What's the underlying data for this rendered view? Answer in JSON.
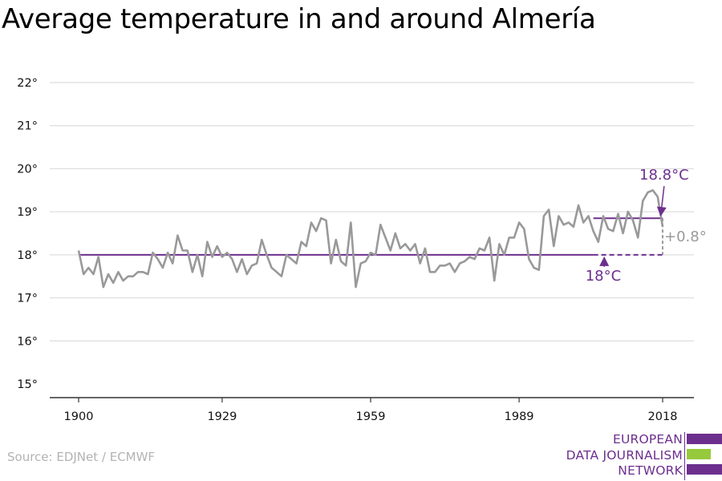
{
  "title": "Average temperature in and around Almería",
  "source": "Source: EDJNet / ECMWF",
  "logo": {
    "lines": [
      "EUROPEAN",
      "DATA JOURNALISM",
      "NETWORK"
    ],
    "colors": [
      "#6d2f8e",
      "#97c93d",
      "#6d2f8e"
    ]
  },
  "chart_data": {
    "type": "line",
    "title": "Average temperature in and around Almería",
    "xlabel": "",
    "ylabel": "",
    "xlim": [
      1900,
      2018
    ],
    "ylim": [
      15,
      22
    ],
    "x_ticks": [
      1900,
      1929,
      1959,
      1989,
      2018
    ],
    "y_ticks": [
      15,
      16,
      17,
      18,
      19,
      20,
      21,
      22
    ],
    "y_tick_suffix": "°",
    "grid": "horizontal",
    "series": [
      {
        "color": "#999999",
        "x_start": 1900,
        "x_end": 2018,
        "values": [
          18.1,
          17.55,
          17.7,
          17.55,
          17.95,
          17.25,
          17.55,
          17.35,
          17.6,
          17.4,
          17.5,
          17.5,
          17.6,
          17.6,
          17.55,
          18.05,
          17.9,
          17.7,
          18.05,
          17.8,
          18.45,
          18.1,
          18.1,
          17.6,
          18.0,
          17.5,
          18.3,
          17.95,
          18.2,
          17.95,
          18.05,
          17.9,
          17.6,
          17.9,
          17.55,
          17.75,
          17.8,
          18.35,
          18.0,
          17.7,
          17.6,
          17.5,
          18.0,
          17.9,
          17.8,
          18.3,
          18.2,
          18.75,
          18.55,
          18.85,
          18.8,
          17.8,
          18.35,
          17.85,
          17.75,
          18.75,
          17.25,
          17.8,
          17.85,
          18.05,
          18.0,
          18.7,
          18.4,
          18.1,
          18.5,
          18.15,
          18.25,
          18.1,
          18.25,
          17.8,
          18.15,
          17.6,
          17.6,
          17.75,
          17.75,
          17.8,
          17.6,
          17.8,
          17.85,
          17.95,
          17.9,
          18.15,
          18.1,
          18.4,
          17.4,
          18.25,
          18.0,
          18.4,
          18.4,
          18.75,
          18.6,
          17.9,
          17.7,
          17.65,
          18.9,
          19.05,
          18.2,
          18.9,
          18.7,
          18.75,
          18.65,
          19.15,
          18.75,
          18.9,
          18.55,
          18.3,
          18.9,
          18.6,
          18.55,
          18.95,
          18.5,
          19.0,
          18.8,
          18.4,
          19.25,
          19.45,
          19.5,
          19.35,
          18.65
        ]
      }
    ],
    "reference_lines": [
      {
        "value": 18.0,
        "from": 1900,
        "to": 2004,
        "dashed_to": 2018,
        "color": "#6d2f8e"
      },
      {
        "value": 18.85,
        "from": 2004,
        "to": 2018,
        "color": "#6d2f8e"
      }
    ],
    "annotations": [
      {
        "text": "18°C",
        "color": "#6d2f8e",
        "points_to": 18.0
      },
      {
        "text": "18.8°C",
        "color": "#6d2f8e",
        "points_to": 18.85
      },
      {
        "text": "+0.8°",
        "color": "#9a9a9a"
      }
    ]
  }
}
